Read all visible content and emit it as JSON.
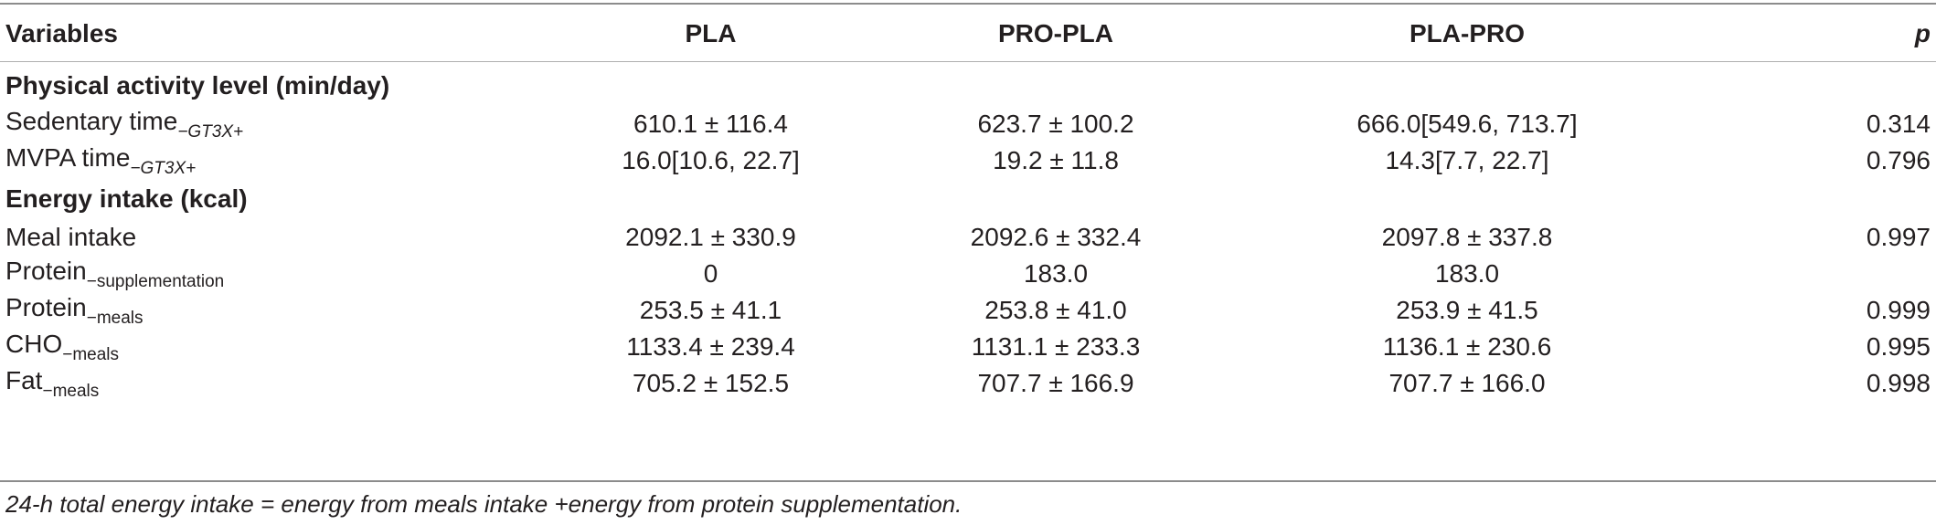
{
  "table": {
    "headers": [
      "Variables",
      "PLA",
      "PRO-PLA",
      "PLA-PRO",
      "p"
    ],
    "sections": [
      {
        "title": "Physical activity level (min/day)",
        "rows": [
          {
            "label": "Sedentary time",
            "sub": "−GT3X+",
            "sub_italic": true,
            "values": [
              "610.1 ± 116.4",
              "623.7 ± 100.2",
              "666.0[549.6, 713.7]",
              "0.314"
            ]
          },
          {
            "label": "MVPA time",
            "sub": "−GT3X+",
            "sub_italic": true,
            "values": [
              "16.0[10.6, 22.7]",
              "19.2 ± 11.8",
              "14.3[7.7, 22.7]",
              "0.796"
            ]
          }
        ]
      },
      {
        "title": "Energy intake (kcal)",
        "rows": [
          {
            "label": "Meal intake",
            "sub": "",
            "sub_italic": false,
            "values": [
              "2092.1 ± 330.9",
              "2092.6 ± 332.4",
              "2097.8 ± 337.8",
              "0.997"
            ]
          },
          {
            "label": "Protein",
            "sub": "−supplementation",
            "sub_italic": false,
            "values": [
              "0",
              "183.0",
              "183.0",
              ""
            ]
          },
          {
            "label": "Protein",
            "sub": "−meals",
            "sub_italic": false,
            "values": [
              "253.5 ± 41.1",
              "253.8 ± 41.0",
              "253.9 ± 41.5",
              "0.999"
            ]
          },
          {
            "label": "CHO",
            "sub": "−meals",
            "sub_italic": false,
            "values": [
              "1133.4 ± 239.4",
              "1131.1 ± 233.3",
              "1136.1 ± 230.6",
              "0.995"
            ]
          },
          {
            "label": "Fat",
            "sub": "−meals",
            "sub_italic": false,
            "values": [
              "705.2 ± 152.5",
              "707.7 ± 166.9",
              "707.7 ± 166.0",
              "0.998"
            ]
          }
        ]
      }
    ]
  },
  "footnote": "24-h total energy intake = energy from meals intake +energy from protein supplementation."
}
